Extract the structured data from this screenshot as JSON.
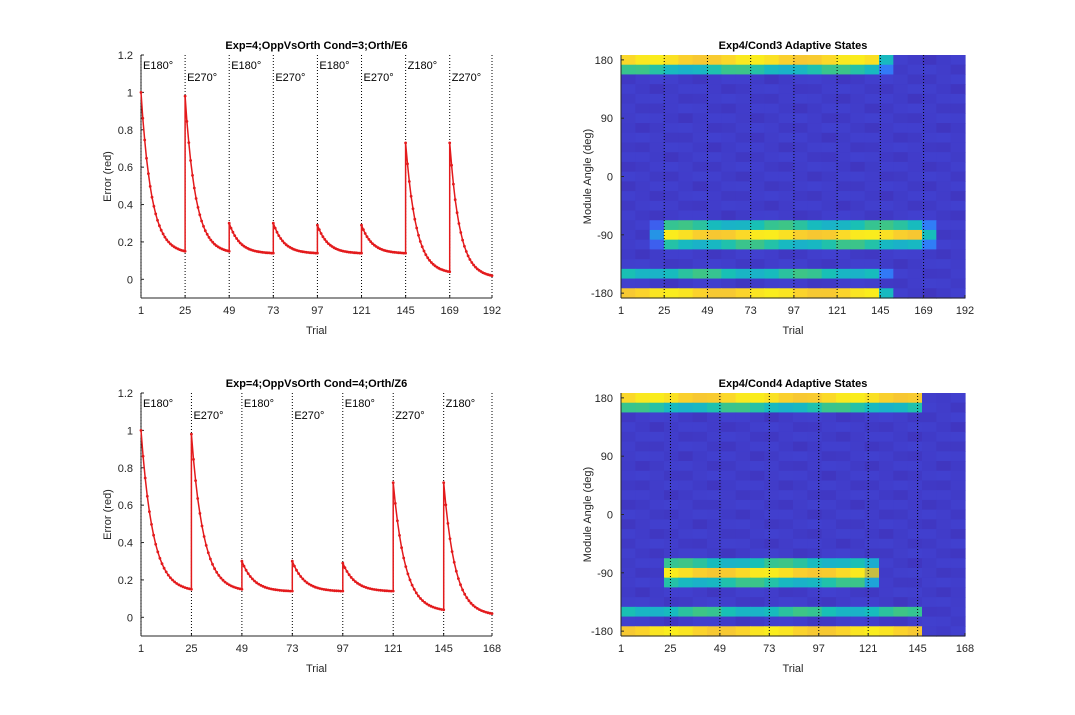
{
  "colors": {
    "line": "#e31a1c",
    "background": "#ffffff",
    "axis": "#262626",
    "vline": "#000000",
    "colormap": [
      "#3e26a8",
      "#4352ea",
      "#2f80f8",
      "#1ea4d8",
      "#16c0b8",
      "#5ac864",
      "#b8bf45",
      "#f1b73c",
      "#fbd42b",
      "#f9fb15"
    ]
  },
  "chart_data": [
    {
      "type": "line",
      "title": "Exp=4;OppVsOrth Cond=3;Orth/E6",
      "xlabel": "Trial",
      "ylabel": "Error (red)",
      "xlim": [
        1,
        192
      ],
      "ylim": [
        -0.1,
        1.2
      ],
      "xticks": [
        1,
        25,
        49,
        73,
        97,
        121,
        145,
        169,
        192
      ],
      "yticks": [
        0,
        0.2,
        0.4,
        0.6,
        0.8,
        1,
        1.2
      ],
      "ytick_labels": [
        "0",
        "0.2",
        "0.4",
        "0.6",
        "0.8",
        "1",
        "1.2"
      ],
      "blocks": [
        {
          "label": "E180°",
          "start": 1,
          "end": 25,
          "peak": 1.0,
          "end_value": 0.15
        },
        {
          "label": "E270°",
          "start": 25,
          "end": 49,
          "peak": 0.98,
          "end_value": 0.15
        },
        {
          "label": "E180°",
          "start": 49,
          "end": 73,
          "peak": 0.3,
          "end_value": 0.14
        },
        {
          "label": "E270°",
          "start": 73,
          "end": 97,
          "peak": 0.3,
          "end_value": 0.14
        },
        {
          "label": "E180°",
          "start": 97,
          "end": 121,
          "peak": 0.29,
          "end_value": 0.14
        },
        {
          "label": "E270°",
          "start": 121,
          "end": 145,
          "peak": 0.29,
          "end_value": 0.14
        },
        {
          "label": "Z180°",
          "start": 145,
          "end": 169,
          "peak": 0.73,
          "end_value": 0.04
        },
        {
          "label": "Z270°",
          "start": 169,
          "end": 192,
          "peak": 0.73,
          "end_value": 0.02
        }
      ]
    },
    {
      "type": "heatmap",
      "title": "Exp4/Cond3 Adaptive States",
      "xlabel": "Trial",
      "ylabel": "Module Angle (deg)",
      "xlim": [
        1,
        192
      ],
      "ylim": [
        -180,
        180
      ],
      "xticks": [
        1,
        25,
        49,
        73,
        97,
        121,
        145,
        169,
        192
      ],
      "yticks": [
        -180,
        -90,
        0,
        90,
        180
      ],
      "rows_angles": [
        180,
        165,
        150,
        135,
        120,
        105,
        90,
        75,
        60,
        45,
        30,
        15,
        0,
        -15,
        -30,
        -45,
        -60,
        -75,
        -90,
        -105,
        -120,
        -135,
        -150,
        -165,
        -180
      ],
      "bands": [
        {
          "angle": 180,
          "start": 1,
          "end": 145,
          "level": 0.9
        },
        {
          "angle": 165,
          "start": 1,
          "end": 145,
          "level": 0.45
        },
        {
          "angle": -75,
          "start": 25,
          "end": 169,
          "level": 0.45
        },
        {
          "angle": -90,
          "start": 25,
          "end": 169,
          "level": 0.9
        },
        {
          "angle": -105,
          "start": 25,
          "end": 169,
          "level": 0.45
        },
        {
          "angle": -150,
          "start": 1,
          "end": 145,
          "level": 0.45
        },
        {
          "angle": -180,
          "start": 1,
          "end": 145,
          "level": 0.9
        }
      ]
    },
    {
      "type": "line",
      "title": "Exp=4;OppVsOrth Cond=4;Orth/Z6",
      "xlabel": "Trial",
      "ylabel": "Error (red)",
      "xlim": [
        1,
        168
      ],
      "ylim": [
        -0.1,
        1.2
      ],
      "xticks": [
        1,
        25,
        49,
        73,
        97,
        121,
        145,
        168
      ],
      "yticks": [
        0,
        0.2,
        0.4,
        0.6,
        0.8,
        1,
        1.2
      ],
      "ytick_labels": [
        "0",
        "0.2",
        "0.4",
        "0.6",
        "0.8",
        "1",
        "1.2"
      ],
      "blocks": [
        {
          "label": "E180°",
          "start": 1,
          "end": 25,
          "peak": 1.0,
          "end_value": 0.15
        },
        {
          "label": "E270°",
          "start": 25,
          "end": 49,
          "peak": 0.98,
          "end_value": 0.15
        },
        {
          "label": "E180°",
          "start": 49,
          "end": 73,
          "peak": 0.3,
          "end_value": 0.14
        },
        {
          "label": "E270°",
          "start": 73,
          "end": 97,
          "peak": 0.3,
          "end_value": 0.14
        },
        {
          "label": "E180°",
          "start": 97,
          "end": 121,
          "peak": 0.29,
          "end_value": 0.14
        },
        {
          "label": "Z270°",
          "start": 121,
          "end": 145,
          "peak": 0.72,
          "end_value": 0.04
        },
        {
          "label": "Z180°",
          "start": 145,
          "end": 168,
          "peak": 0.72,
          "end_value": 0.02
        }
      ]
    },
    {
      "type": "heatmap",
      "title": "Exp4/Cond4 Adaptive States",
      "xlabel": "Trial",
      "ylabel": "Module Angle (deg)",
      "xlim": [
        1,
        168
      ],
      "ylim": [
        -180,
        180
      ],
      "xticks": [
        1,
        25,
        49,
        73,
        97,
        121,
        145,
        168
      ],
      "yticks": [
        -180,
        -90,
        0,
        90,
        180
      ],
      "rows_angles": [
        180,
        165,
        150,
        135,
        120,
        105,
        90,
        75,
        60,
        45,
        30,
        15,
        0,
        -15,
        -30,
        -45,
        -60,
        -75,
        -90,
        -105,
        -120,
        -135,
        -150,
        -165,
        -180
      ],
      "bands": [
        {
          "angle": 180,
          "start": 1,
          "end": 145,
          "level": 0.9
        },
        {
          "angle": 165,
          "start": 1,
          "end": 145,
          "level": 0.45
        },
        {
          "angle": -75,
          "start": 25,
          "end": 121,
          "level": 0.45
        },
        {
          "angle": -90,
          "start": 25,
          "end": 121,
          "level": 0.9
        },
        {
          "angle": -105,
          "start": 25,
          "end": 121,
          "level": 0.45
        },
        {
          "angle": -150,
          "start": 1,
          "end": 145,
          "level": 0.45
        },
        {
          "angle": -180,
          "start": 1,
          "end": 145,
          "level": 0.9
        }
      ]
    }
  ]
}
